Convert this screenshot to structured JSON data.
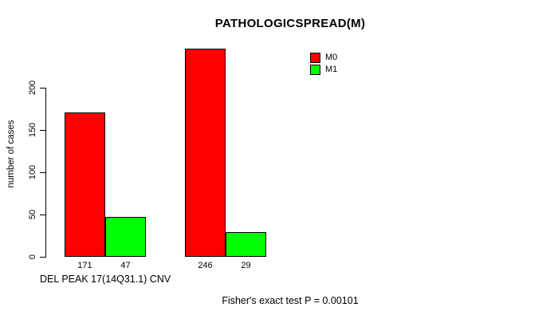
{
  "chart_data": {
    "type": "bar",
    "title": "PATHOLOGICSPREAD(M)",
    "ylabel": "number of cases",
    "xlabel": "DEL PEAK 17(14Q31.1) CNV",
    "annotation": "Fisher's exact test P = 0.00101",
    "series": [
      {
        "name": "M0",
        "color": "#ff0000",
        "values": [
          171,
          246
        ]
      },
      {
        "name": "M1",
        "color": "#00ff00",
        "values": [
          47,
          29
        ]
      }
    ],
    "bar_value_labels": [
      [
        "171",
        "246"
      ],
      [
        "47",
        "29"
      ]
    ],
    "yticks": [
      0,
      50,
      100,
      150,
      200
    ],
    "ylim": [
      0,
      246
    ],
    "grid": false,
    "legend_position": "top-right",
    "bar_border_color": "#000000",
    "axis_color": "#000000",
    "background": "#ffffff"
  }
}
